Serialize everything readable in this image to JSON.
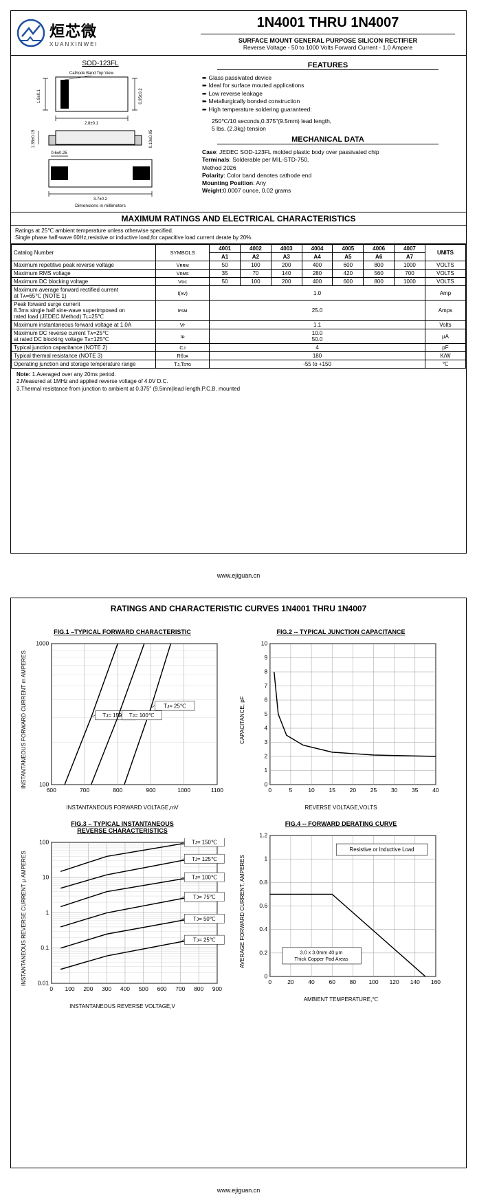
{
  "logo": {
    "cn": "烜芯微",
    "en": "XUANXINWEI"
  },
  "header": {
    "title": "1N4001 THRU  1N4007",
    "subtitle": "SURFACE MOUNT GENERAL PURPOSE SILICON RECTIFIER",
    "spec": "Reverse Voltage - 50 to 1000 Volts    Forward Current -  1.0 Ampere"
  },
  "package": {
    "title": "SOD-123FL",
    "note": "Dimensions in millimeters",
    "cathodeBand": "Cathode Band Top View",
    "dims": {
      "h": "1.8±0.1",
      "w": "2.8±0.1",
      "t": "0.95±0.2",
      "pad": "0.6±0.25",
      "len": "3.7±0.2",
      "side": "0.10±0.05",
      "b": "1.35±0.15"
    }
  },
  "features": {
    "title": "FEATURES",
    "items": [
      "Glass passivated device",
      "Ideal for surface mouted applications",
      "Low reverse leakage",
      "Metallurgically bonded construction",
      "High temperature soldering guaranteed:"
    ],
    "sub": [
      "250℃/10 seconds,0.375\"(9.5mm) lead length,",
      "5 lbs. (2.3kg) tension"
    ]
  },
  "mechanical": {
    "title": "MECHANICAL DATA",
    "lines": [
      {
        "k": "Case",
        "v": ": JEDEC SOD-123FL molded plastic body over passivated chip"
      },
      {
        "k": "Terminals",
        "v": ": Solderable per MIL-STD-750,"
      },
      {
        "k": "",
        "v": "Method 2026"
      },
      {
        "k": "Polarity",
        "v": ": Color band denotes cathode end"
      },
      {
        "k": "Mounting Position",
        "v": ": Any"
      },
      {
        "k": "Weight",
        "v": ":0.0007 ounce, 0.02 grams"
      }
    ]
  },
  "ratings": {
    "title": "MAXIMUM RATINGS AND ELECTRICAL CHARACTERISTICS",
    "preamble": "Ratings at 25℃ ambient temperature unless otherwise specified.\nSingle phase half-wave 60Hz,resistive or inductive load,for capacitive load current derate by 20%.",
    "header": {
      "catalog": "Catalog         Number",
      "symbols": "SYMBOLS",
      "parts": [
        "4001",
        "4002",
        "4003",
        "4004",
        "4005",
        "4006",
        "4007"
      ],
      "codes": [
        "A1",
        "A2",
        "A3",
        "A4",
        "A5",
        "A6",
        "A7"
      ],
      "units": "UNITS"
    },
    "rows": [
      {
        "p": "Maximum repetitive peak reverse voltage",
        "s": "Vʀʀᴍ",
        "v": [
          "50",
          "100",
          "200",
          "400",
          "600",
          "800",
          "1000"
        ],
        "u": "VOLTS"
      },
      {
        "p": "Maximum RMS voltage",
        "s": "Vʀᴍs",
        "v": [
          "35",
          "70",
          "140",
          "280",
          "420",
          "560",
          "700"
        ],
        "u": "VOLTS"
      },
      {
        "p": "Maximum DC blocking voltage",
        "s": "Vᴅᴄ",
        "v": [
          "50",
          "100",
          "200",
          "400",
          "600",
          "800",
          "1000"
        ],
        "u": "VOLTS"
      },
      {
        "p": "Maximum average forward rectified current\nat Tᴀ=65℃  (NOTE 1)",
        "s": "I(ᴀᴠ)",
        "v": [
          "1.0"
        ],
        "span": 7,
        "u": "Amp"
      },
      {
        "p": "Peak forward surge current\n8.3ms single half sine-wave superimposed on\nrated load (JEDEC Method)   Tʟ=25℃",
        "s": "Iғsᴍ",
        "v": [
          "25.0"
        ],
        "span": 7,
        "u": "Amps"
      },
      {
        "p": "Maximum instantaneous forward voltage at 1.0A",
        "s": "Vғ",
        "v": [
          "1.1"
        ],
        "span": 7,
        "u": "Volts"
      },
      {
        "p": "Maximum DC reverse current    Tᴀ=25℃\nat rated DC blocking voltage      Tᴀ=125℃",
        "s": "Iʀ",
        "v": [
          "10.0\n50.0"
        ],
        "span": 7,
        "u": "μA"
      },
      {
        "p": "Typical junction capacitance (NOTE 2)",
        "s": "Cᴊ",
        "v": [
          "4"
        ],
        "span": 7,
        "u": "pF"
      },
      {
        "p": "Typical thermal resistance (NOTE 3)",
        "s": "Rθᴊᴀ",
        "v": [
          "180"
        ],
        "span": 7,
        "u": "K/W"
      },
      {
        "p": "Operating junction and storage temperature range",
        "s": "Tᴊ,Tsᴛɢ",
        "v": [
          "-55 to +150"
        ],
        "span": 7,
        "u": "℃"
      }
    ],
    "notes": "Note: 1.Averaged over any 20ms period.\n          2.Measured at 1MHz and applied reverse voltage of 4.0V D.C.\n          3.Thermal resistance from junction to ambient  at 0.375\" (9.5mm)lead length,P.C.B. mounted"
  },
  "footer": "www.ejiguan.cn",
  "page2": {
    "title": "RATINGS AND CHARACTERISTIC CURVES 1N4001 THRU 1N4007",
    "charts": [
      {
        "title": "FIG.1 –TYPICAL FORWARD CHARACTERISTIC",
        "yl": "INSTANTANEOUS FORWARD CURRENT\nm AMPERES",
        "xl": "INSTANTANEOUS FORWARD VOLTAGE,mV",
        "xrange": [
          600,
          1100
        ],
        "yrange": [
          100,
          1000
        ],
        "xticks": [
          600,
          700,
          800,
          900,
          1000,
          1100
        ],
        "yticks": [
          100,
          1000
        ],
        "ylog": true,
        "curves": [
          {
            "label": "Tᴊ= 150℃",
            "pts": [
              [
                640,
                100
              ],
              [
                720,
                300
              ],
              [
                800,
                1000
              ]
            ]
          },
          {
            "label": "Tᴊ= 25℃",
            "pts": [
              [
                820,
                100
              ],
              [
                900,
                350
              ],
              [
                960,
                1000
              ]
            ]
          },
          {
            "label": "Tᴊ= 100℃",
            "pts": [
              [
                720,
                100
              ],
              [
                800,
                300
              ],
              [
                880,
                1000
              ]
            ]
          }
        ]
      },
      {
        "title": "FIG.2 -- TYPICAL JUNCTION CAPACITANCE",
        "yl": "CAPACITANCE, pF",
        "xl": "REVERSE VOLTAGE,VOLTS",
        "xrange": [
          0,
          40
        ],
        "yrange": [
          0,
          10
        ],
        "xticks": [
          0,
          5,
          10,
          15,
          20,
          25,
          30,
          35,
          40
        ],
        "yticks": [
          0,
          1,
          2,
          3,
          4,
          5,
          6,
          7,
          8,
          9,
          10
        ],
        "curves": [
          {
            "pts": [
              [
                1,
                8
              ],
              [
                2,
                5
              ],
              [
                4,
                3.5
              ],
              [
                8,
                2.8
              ],
              [
                15,
                2.3
              ],
              [
                25,
                2.1
              ],
              [
                40,
                2
              ]
            ]
          }
        ]
      },
      {
        "title": "FIG.3 – TYPICAL INSTANTANEOUS\nREVERSE CHARACTERISTICS",
        "yl": "INSTANTANEOUS REVERSE CURRENT\nμ AMPERES",
        "xl": "INSTANTANEOUS REVERSE VOLTAGE,V",
        "xrange": [
          0,
          900
        ],
        "yrange": [
          0.01,
          100
        ],
        "xticks": [
          0,
          100,
          200,
          300,
          400,
          500,
          600,
          700,
          800,
          900
        ],
        "yticks": [
          0.01,
          0.1,
          1,
          10,
          100
        ],
        "ylog": true,
        "curves": [
          {
            "label": "Tᴊ= 150℃",
            "pts": [
              [
                50,
                15
              ],
              [
                300,
                40
              ],
              [
                700,
                90
              ],
              [
                900,
                100
              ]
            ]
          },
          {
            "label": "Tᴊ= 125℃",
            "pts": [
              [
                50,
                5
              ],
              [
                300,
                12
              ],
              [
                700,
                30
              ],
              [
                900,
                40
              ]
            ]
          },
          {
            "label": "Tᴊ= 100℃",
            "pts": [
              [
                50,
                1.5
              ],
              [
                300,
                4
              ],
              [
                700,
                9
              ],
              [
                900,
                12
              ]
            ]
          },
          {
            "label": "Tᴊ= 75℃",
            "pts": [
              [
                50,
                0.4
              ],
              [
                300,
                1
              ],
              [
                700,
                2.5
              ],
              [
                900,
                3.5
              ]
            ]
          },
          {
            "label": "Tᴊ= 50℃",
            "pts": [
              [
                50,
                0.1
              ],
              [
                300,
                0.25
              ],
              [
                700,
                0.6
              ],
              [
                900,
                0.9
              ]
            ]
          },
          {
            "label": "Tᴊ= 25℃",
            "pts": [
              [
                50,
                0.025
              ],
              [
                300,
                0.06
              ],
              [
                700,
                0.15
              ],
              [
                900,
                0.22
              ]
            ]
          }
        ]
      },
      {
        "title": "FIG.4 -- FORWARD DERATING CURVE",
        "yl": "AVERAGE FORWARD CURRENT,\nAMPERES",
        "xl": "AMBIENT TEMPERATURE,℃",
        "xrange": [
          0,
          160
        ],
        "yrange": [
          0,
          1.2
        ],
        "xticks": [
          0,
          20,
          40,
          60,
          80,
          100,
          120,
          140,
          160
        ],
        "yticks": [
          0,
          0.2,
          0.4,
          0.6,
          0.8,
          1.0,
          1.2
        ],
        "annot": [
          "Resistive or Inductive Load",
          "3.0 x 3.0mm   40 μm\nThick Copper Pad Areas"
        ],
        "curves": [
          {
            "pts": [
              [
                0,
                0.7
              ],
              [
                60,
                0.7
              ],
              [
                150,
                0
              ]
            ]
          }
        ]
      }
    ]
  }
}
